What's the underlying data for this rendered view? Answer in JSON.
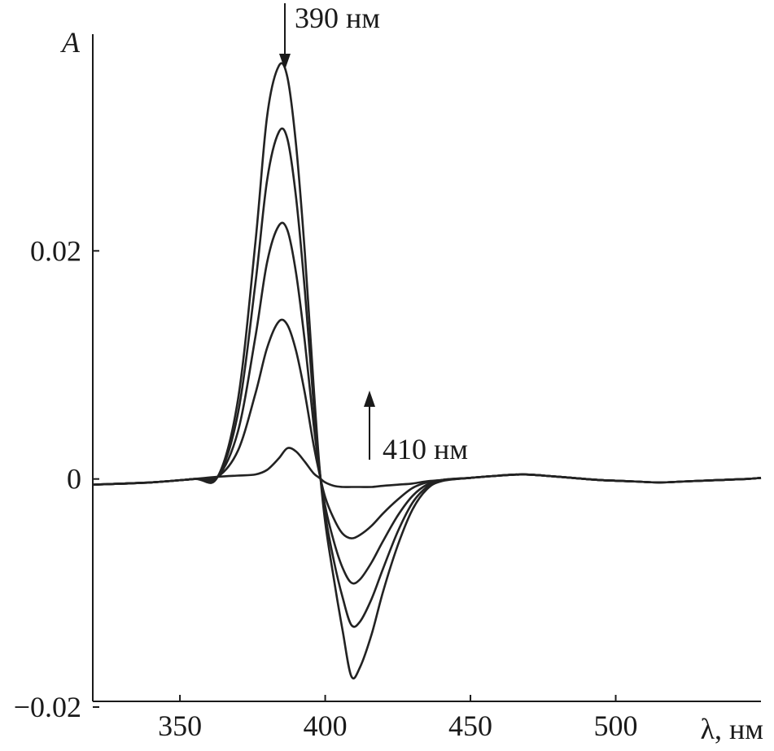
{
  "chart_data": {
    "type": "line",
    "title": "",
    "xlabel": "λ, нм",
    "ylabel": "A",
    "xlim": [
      320,
      550
    ],
    "ylim": [
      -0.0195,
      0.039
    ],
    "xticks": [
      350,
      400,
      450,
      500
    ],
    "yticks": [
      -0.02,
      0,
      0.02
    ],
    "ytick_labels": [
      "−0.02",
      "0",
      "0.02"
    ],
    "grid": false,
    "annotations": [
      {
        "text": "390 нм",
        "x": 385,
        "direction": "down"
      },
      {
        "text": "410 нм",
        "x": 413,
        "direction": "up"
      }
    ],
    "x": [
      320,
      340,
      355,
      363,
      370,
      376,
      380,
      384,
      387,
      390,
      393,
      396,
      398,
      400,
      403,
      406,
      409,
      412,
      416,
      420,
      425,
      430,
      435,
      440,
      450,
      460,
      468,
      475,
      485,
      495,
      505,
      515,
      525,
      535,
      545,
      550
    ],
    "series": [
      {
        "values": [
          -0.0005,
          -0.0003,
          0,
          0.0002,
          0.0003,
          0.0004,
          0.0008,
          0.0018,
          0.0027,
          0.0024,
          0.0015,
          0.0005,
          0.0001,
          -0.0003,
          -0.0006,
          -0.0007,
          -0.0007,
          -0.0007,
          -0.0007,
          -0.0006,
          -0.0005,
          -0.0004,
          -0.0002,
          -0.0001,
          0.0001,
          0.0003,
          0.0004,
          0.0003,
          0.0001,
          -0.0001,
          -0.0002,
          -0.0003,
          -0.0002,
          -0.0001,
          0,
          0.0001
        ]
      },
      {
        "values": [
          -0.0005,
          -0.0003,
          0,
          0.0002,
          0.0025,
          0.0075,
          0.0115,
          0.0138,
          0.0135,
          0.0112,
          0.0075,
          0.003,
          0.0005,
          -0.0016,
          -0.0035,
          -0.0048,
          -0.0052,
          -0.0049,
          -0.0041,
          -0.003,
          -0.0018,
          -0.0008,
          -0.0003,
          -0.0001,
          0.0001,
          0.0003,
          0.0004,
          0.0003,
          0.0001,
          -0.0001,
          -0.0002,
          -0.0003,
          -0.0002,
          -0.0001,
          0,
          0.0001
        ]
      },
      {
        "values": [
          -0.0005,
          -0.0003,
          0,
          0.0002,
          0.0042,
          0.0125,
          0.019,
          0.0222,
          0.0218,
          0.018,
          0.012,
          0.0048,
          0.0008,
          -0.0024,
          -0.0055,
          -0.0078,
          -0.0091,
          -0.0088,
          -0.0073,
          -0.0054,
          -0.0032,
          -0.0015,
          -0.0005,
          -0.0001,
          0.0001,
          0.0003,
          0.0004,
          0.0003,
          0.0001,
          -0.0001,
          -0.0002,
          -0.0003,
          -0.0002,
          -0.0001,
          0,
          0.0001
        ]
      },
      {
        "values": [
          -0.0005,
          -0.0003,
          0,
          0.0002,
          0.0058,
          0.0172,
          0.0262,
          0.0304,
          0.0298,
          0.0246,
          0.0165,
          0.0066,
          0.001,
          -0.0031,
          -0.0072,
          -0.0104,
          -0.0128,
          -0.0125,
          -0.0105,
          -0.0078,
          -0.0046,
          -0.0021,
          -0.0007,
          -0.0001,
          0.0001,
          0.0003,
          0.0004,
          0.0003,
          0.0001,
          -0.0001,
          -0.0002,
          -0.0003,
          -0.0002,
          -0.0001,
          0,
          0.0001
        ]
      },
      {
        "values": [
          -0.0005,
          -0.0003,
          0,
          0.0002,
          0.007,
          0.0208,
          0.0318,
          0.0362,
          0.0352,
          0.0292,
          0.0198,
          0.0082,
          0.0012,
          -0.0038,
          -0.0088,
          -0.0133,
          -0.0173,
          -0.0165,
          -0.0136,
          -0.0098,
          -0.0058,
          -0.0027,
          -0.0009,
          -0.0002,
          0.0001,
          0.0003,
          0.0004,
          0.0003,
          0.0001,
          -0.0001,
          -0.0002,
          -0.0003,
          -0.0002,
          -0.0001,
          0,
          0.0001
        ]
      }
    ]
  }
}
